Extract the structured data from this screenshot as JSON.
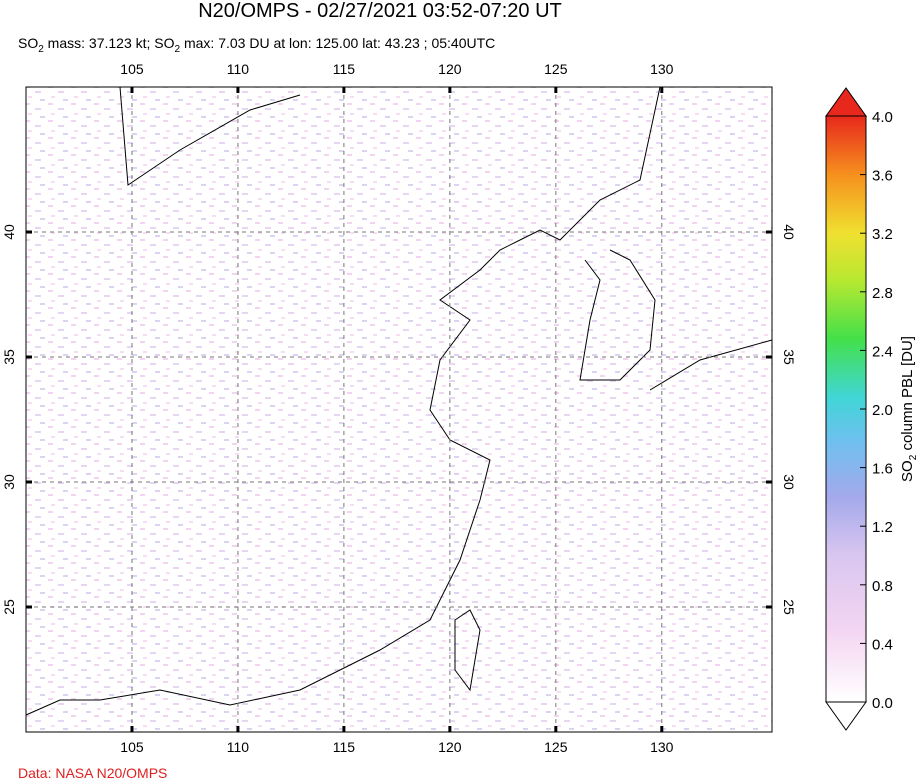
{
  "header": {
    "title": "N20/OMPS - 02/27/2021 03:52-07:20 UT",
    "subtitle": [
      "SO",
      "2",
      " mass: 37.123 kt; SO",
      "2",
      " max: 7.03 DU at lon: 125.00 lat: 43.23 ; 05:40UTC"
    ]
  },
  "map": {
    "lon_range": [
      100,
      135.2
    ],
    "lat_range": [
      20,
      45.8
    ],
    "lon_ticks": [
      105,
      110,
      115,
      120,
      125,
      130
    ],
    "lat_ticks": [
      25,
      30,
      35,
      40
    ]
  },
  "colorbar": {
    "label": [
      "SO",
      "2",
      " column PBL [DU]"
    ],
    "range": [
      0,
      4
    ],
    "ticks": [
      {
        "value": 0,
        "label": "0.0"
      },
      {
        "value": 0.4,
        "label": "0.4"
      },
      {
        "value": 0.8,
        "label": "0.8"
      },
      {
        "value": 1.2,
        "label": "1.2"
      },
      {
        "value": 1.6,
        "label": "1.6"
      },
      {
        "value": 2,
        "label": "2.0"
      },
      {
        "value": 2.4,
        "label": "2.4"
      },
      {
        "value": 2.8,
        "label": "2.8"
      },
      {
        "value": 3.2,
        "label": "3.2"
      },
      {
        "value": 3.6,
        "label": "3.6"
      },
      {
        "value": 4,
        "label": "4.0"
      }
    ]
  },
  "credit": "Data: NASA N20/OMPS"
}
